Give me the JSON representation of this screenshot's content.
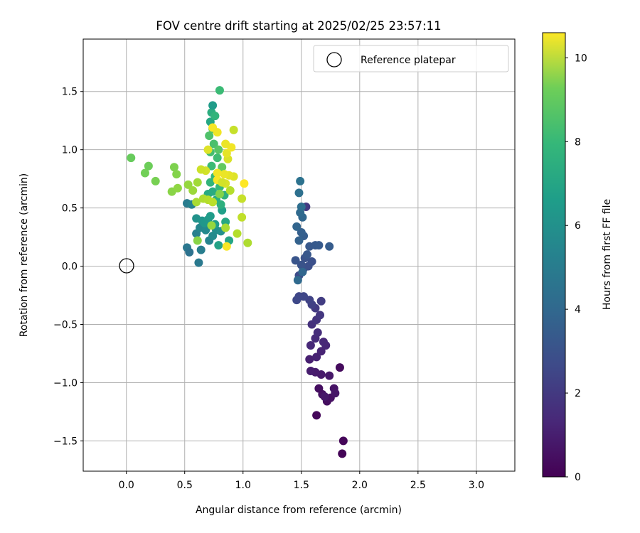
{
  "chart_data": {
    "type": "scatter",
    "title": "FOV centre drift starting at 2025/02/25 23:57:11",
    "xlabel": "Angular distance from reference (arcmin)",
    "ylabel": "Rotation from reference (arcmin)",
    "xlim": [
      -0.37,
      3.33
    ],
    "ylim": [
      -1.76,
      1.95
    ],
    "xticks": [
      0.0,
      0.5,
      1.0,
      1.5,
      2.0,
      2.5,
      3.0
    ],
    "xtick_labels": [
      "0.0",
      "0.5",
      "1.0",
      "1.5",
      "2.0",
      "2.5",
      "3.0"
    ],
    "yticks": [
      -1.5,
      -1.0,
      -0.5,
      0.0,
      0.5,
      1.0,
      1.5
    ],
    "ytick_labels": [
      "−1.5",
      "−1.0",
      "−0.5",
      "0.0",
      "0.5",
      "1.0",
      "1.5"
    ],
    "grid": true,
    "legend": {
      "placement": "top-right",
      "entries": [
        "Reference platepar"
      ]
    },
    "colorbar": {
      "label": "Hours from first FF file",
      "colormap": "viridis",
      "range": [
        0,
        10.6
      ],
      "ticks": [
        0,
        2,
        4,
        6,
        8,
        10
      ],
      "tick_labels": [
        "0",
        "2",
        "4",
        "6",
        "8",
        "10"
      ]
    },
    "reference_point": {
      "name": "Reference platepar",
      "x": 0.0,
      "y": 0.0
    },
    "points": [
      {
        "x": 1.85,
        "y": -1.61,
        "c": 0.1
      },
      {
        "x": 1.86,
        "y": -1.5,
        "c": 0.15
      },
      {
        "x": 1.83,
        "y": -0.87,
        "c": 0.3
      },
      {
        "x": 1.63,
        "y": -1.28,
        "c": 0.2
      },
      {
        "x": 1.72,
        "y": -1.16,
        "c": 0.35
      },
      {
        "x": 1.75,
        "y": -1.13,
        "c": 0.45
      },
      {
        "x": 1.68,
        "y": -1.1,
        "c": 0.5
      },
      {
        "x": 1.65,
        "y": -1.05,
        "c": 0.4
      },
      {
        "x": 1.78,
        "y": -1.05,
        "c": 0.55
      },
      {
        "x": 1.79,
        "y": -1.09,
        "c": 0.6
      },
      {
        "x": 1.7,
        "y": -1.12,
        "c": 0.65
      },
      {
        "x": 1.74,
        "y": -0.94,
        "c": 0.7
      },
      {
        "x": 1.67,
        "y": -0.93,
        "c": 0.75
      },
      {
        "x": 1.62,
        "y": -0.91,
        "c": 0.8
      },
      {
        "x": 1.58,
        "y": -0.9,
        "c": 0.85
      },
      {
        "x": 1.57,
        "y": -0.8,
        "c": 0.9
      },
      {
        "x": 1.63,
        "y": -0.78,
        "c": 1.0
      },
      {
        "x": 1.67,
        "y": -0.73,
        "c": 1.05
      },
      {
        "x": 1.71,
        "y": -0.68,
        "c": 1.1
      },
      {
        "x": 1.69,
        "y": -0.65,
        "c": 1.15
      },
      {
        "x": 1.58,
        "y": -0.68,
        "c": 1.2
      },
      {
        "x": 1.62,
        "y": -0.62,
        "c": 1.3
      },
      {
        "x": 1.64,
        "y": -0.57,
        "c": 1.4
      },
      {
        "x": 1.59,
        "y": -0.5,
        "c": 1.5
      },
      {
        "x": 1.63,
        "y": -0.46,
        "c": 1.6
      },
      {
        "x": 1.66,
        "y": -0.42,
        "c": 1.7
      },
      {
        "x": 1.62,
        "y": -0.36,
        "c": 1.8
      },
      {
        "x": 1.67,
        "y": -0.3,
        "c": 1.9
      },
      {
        "x": 1.59,
        "y": -0.33,
        "c": 2.0
      },
      {
        "x": 1.57,
        "y": -0.29,
        "c": 2.1
      },
      {
        "x": 1.52,
        "y": -0.26,
        "c": 2.2
      },
      {
        "x": 1.48,
        "y": -0.26,
        "c": 2.25
      },
      {
        "x": 1.46,
        "y": -0.29,
        "c": 2.3
      },
      {
        "x": 1.48,
        "y": -0.08,
        "c": 2.4
      },
      {
        "x": 1.52,
        "y": -0.02,
        "c": 2.5
      },
      {
        "x": 1.56,
        "y": 0.0,
        "c": 2.55
      },
      {
        "x": 1.59,
        "y": 0.04,
        "c": 2.6
      },
      {
        "x": 1.53,
        "y": 0.07,
        "c": 2.65
      },
      {
        "x": 1.5,
        "y": 0.01,
        "c": 2.7
      },
      {
        "x": 1.45,
        "y": 0.05,
        "c": 2.8
      },
      {
        "x": 1.55,
        "y": 0.1,
        "c": 2.85
      },
      {
        "x": 1.57,
        "y": 0.17,
        "c": 2.9
      },
      {
        "x": 1.62,
        "y": 0.18,
        "c": 2.95
      },
      {
        "x": 1.65,
        "y": 0.18,
        "c": 3.0
      },
      {
        "x": 1.74,
        "y": 0.17,
        "c": 3.05
      },
      {
        "x": 1.52,
        "y": 0.26,
        "c": 3.1
      },
      {
        "x": 1.5,
        "y": 0.29,
        "c": 3.2
      },
      {
        "x": 1.48,
        "y": 0.22,
        "c": 3.3
      },
      {
        "x": 1.46,
        "y": 0.34,
        "c": 3.4
      },
      {
        "x": 1.51,
        "y": 0.42,
        "c": 3.5
      },
      {
        "x": 1.49,
        "y": 0.46,
        "c": 3.6
      },
      {
        "x": 1.54,
        "y": 0.51,
        "c": 1.8
      },
      {
        "x": 1.5,
        "y": 0.51,
        "c": 3.8
      },
      {
        "x": 1.48,
        "y": 0.63,
        "c": 3.9
      },
      {
        "x": 1.49,
        "y": 0.73,
        "c": 4.0
      },
      {
        "x": 1.51,
        "y": -0.05,
        "c": 3.5
      },
      {
        "x": 1.47,
        "y": -0.12,
        "c": 3.6
      },
      {
        "x": 0.52,
        "y": 0.16,
        "c": 4.2
      },
      {
        "x": 0.54,
        "y": 0.12,
        "c": 4.0
      },
      {
        "x": 0.62,
        "y": 0.03,
        "c": 4.3
      },
      {
        "x": 0.64,
        "y": 0.14,
        "c": 4.5
      },
      {
        "x": 0.71,
        "y": 0.22,
        "c": 4.8
      },
      {
        "x": 0.6,
        "y": 0.28,
        "c": 4.6
      },
      {
        "x": 0.63,
        "y": 0.33,
        "c": 4.9
      },
      {
        "x": 0.68,
        "y": 0.31,
        "c": 5.0
      },
      {
        "x": 0.74,
        "y": 0.26,
        "c": 5.1
      },
      {
        "x": 0.77,
        "y": 0.31,
        "c": 5.2
      },
      {
        "x": 0.81,
        "y": 0.3,
        "c": 5.3
      },
      {
        "x": 0.6,
        "y": 0.41,
        "c": 5.4
      },
      {
        "x": 0.65,
        "y": 0.39,
        "c": 5.5
      },
      {
        "x": 0.67,
        "y": 0.37,
        "c": 5.6
      },
      {
        "x": 0.7,
        "y": 0.4,
        "c": 5.7
      },
      {
        "x": 0.72,
        "y": 0.43,
        "c": 5.8
      },
      {
        "x": 0.76,
        "y": 0.36,
        "c": 5.9
      },
      {
        "x": 0.52,
        "y": 0.54,
        "c": 4.4
      },
      {
        "x": 0.56,
        "y": 0.53,
        "c": 4.7
      },
      {
        "x": 0.82,
        "y": 0.48,
        "c": 6.0
      },
      {
        "x": 0.79,
        "y": 0.18,
        "c": 6.1
      },
      {
        "x": 0.88,
        "y": 0.22,
        "c": 6.2
      },
      {
        "x": 0.85,
        "y": 0.38,
        "c": 6.3
      },
      {
        "x": 0.7,
        "y": 0.62,
        "c": 6.4
      },
      {
        "x": 0.74,
        "y": 0.64,
        "c": 6.5
      },
      {
        "x": 0.77,
        "y": 0.57,
        "c": 6.6
      },
      {
        "x": 0.81,
        "y": 0.53,
        "c": 6.7
      },
      {
        "x": 0.84,
        "y": 0.61,
        "c": 6.8
      },
      {
        "x": 0.72,
        "y": 0.72,
        "c": 6.9
      },
      {
        "x": 0.76,
        "y": 0.77,
        "c": 7.0
      },
      {
        "x": 0.8,
        "y": 0.68,
        "c": 7.1
      },
      {
        "x": 0.73,
        "y": 0.86,
        "c": 7.2
      },
      {
        "x": 0.78,
        "y": 0.93,
        "c": 7.3
      },
      {
        "x": 0.72,
        "y": 0.98,
        "c": 7.4
      },
      {
        "x": 0.75,
        "y": 1.05,
        "c": 7.5
      },
      {
        "x": 0.71,
        "y": 1.12,
        "c": 7.6
      },
      {
        "x": 0.74,
        "y": 1.18,
        "c": 7.7
      },
      {
        "x": 0.72,
        "y": 1.24,
        "c": 6.3
      },
      {
        "x": 0.73,
        "y": 1.32,
        "c": 6.6
      },
      {
        "x": 0.74,
        "y": 1.38,
        "c": 5.8
      },
      {
        "x": 0.8,
        "y": 1.51,
        "c": 7.2
      },
      {
        "x": 0.76,
        "y": 1.29,
        "c": 6.9
      },
      {
        "x": 0.79,
        "y": 1.0,
        "c": 7.8
      },
      {
        "x": 0.82,
        "y": 0.85,
        "c": 8.0
      },
      {
        "x": 0.04,
        "y": 0.93,
        "c": 8.1
      },
      {
        "x": 0.19,
        "y": 0.86,
        "c": 8.2
      },
      {
        "x": 0.16,
        "y": 0.8,
        "c": 8.3
      },
      {
        "x": 0.25,
        "y": 0.73,
        "c": 8.4
      },
      {
        "x": 0.41,
        "y": 0.85,
        "c": 8.5
      },
      {
        "x": 0.43,
        "y": 0.79,
        "c": 8.6
      },
      {
        "x": 0.39,
        "y": 0.64,
        "c": 8.7
      },
      {
        "x": 0.44,
        "y": 0.67,
        "c": 8.8
      },
      {
        "x": 0.53,
        "y": 0.7,
        "c": 8.9
      },
      {
        "x": 0.57,
        "y": 0.65,
        "c": 9.0
      },
      {
        "x": 0.61,
        "y": 0.72,
        "c": 9.1
      },
      {
        "x": 0.6,
        "y": 0.55,
        "c": 9.2
      },
      {
        "x": 0.66,
        "y": 0.58,
        "c": 9.3
      },
      {
        "x": 0.7,
        "y": 0.57,
        "c": 9.4
      },
      {
        "x": 0.74,
        "y": 0.55,
        "c": 9.5
      },
      {
        "x": 0.61,
        "y": 0.22,
        "c": 8.7
      },
      {
        "x": 0.73,
        "y": 0.35,
        "c": 8.9
      },
      {
        "x": 0.85,
        "y": 0.33,
        "c": 9.2
      },
      {
        "x": 0.95,
        "y": 0.28,
        "c": 9.4
      },
      {
        "x": 1.04,
        "y": 0.2,
        "c": 9.3
      },
      {
        "x": 0.99,
        "y": 0.42,
        "c": 9.6
      },
      {
        "x": 0.99,
        "y": 0.58,
        "c": 9.7
      },
      {
        "x": 0.89,
        "y": 0.65,
        "c": 9.4
      },
      {
        "x": 0.85,
        "y": 0.71,
        "c": 10.0
      },
      {
        "x": 0.92,
        "y": 0.77,
        "c": 10.1
      },
      {
        "x": 0.88,
        "y": 0.78,
        "c": 10.2
      },
      {
        "x": 0.84,
        "y": 0.79,
        "c": 10.3
      },
      {
        "x": 0.78,
        "y": 0.8,
        "c": 10.4
      },
      {
        "x": 0.68,
        "y": 0.82,
        "c": 9.9
      },
      {
        "x": 0.64,
        "y": 0.83,
        "c": 9.8
      },
      {
        "x": 0.87,
        "y": 0.92,
        "c": 10.0
      },
      {
        "x": 0.86,
        "y": 0.97,
        "c": 10.2
      },
      {
        "x": 0.9,
        "y": 1.02,
        "c": 10.4
      },
      {
        "x": 0.85,
        "y": 1.05,
        "c": 10.3
      },
      {
        "x": 0.7,
        "y": 1.0,
        "c": 10.1
      },
      {
        "x": 0.74,
        "y": 1.19,
        "c": 10.5
      },
      {
        "x": 0.78,
        "y": 1.15,
        "c": 10.4
      },
      {
        "x": 0.92,
        "y": 1.17,
        "c": 9.7
      },
      {
        "x": 0.78,
        "y": 0.74,
        "c": 10.5
      },
      {
        "x": 1.01,
        "y": 0.71,
        "c": 10.6
      },
      {
        "x": 0.86,
        "y": 0.17,
        "c": 10.5
      },
      {
        "x": 0.82,
        "y": 0.72,
        "c": 9.9
      },
      {
        "x": 0.8,
        "y": 0.62,
        "c": 8.6
      }
    ]
  }
}
